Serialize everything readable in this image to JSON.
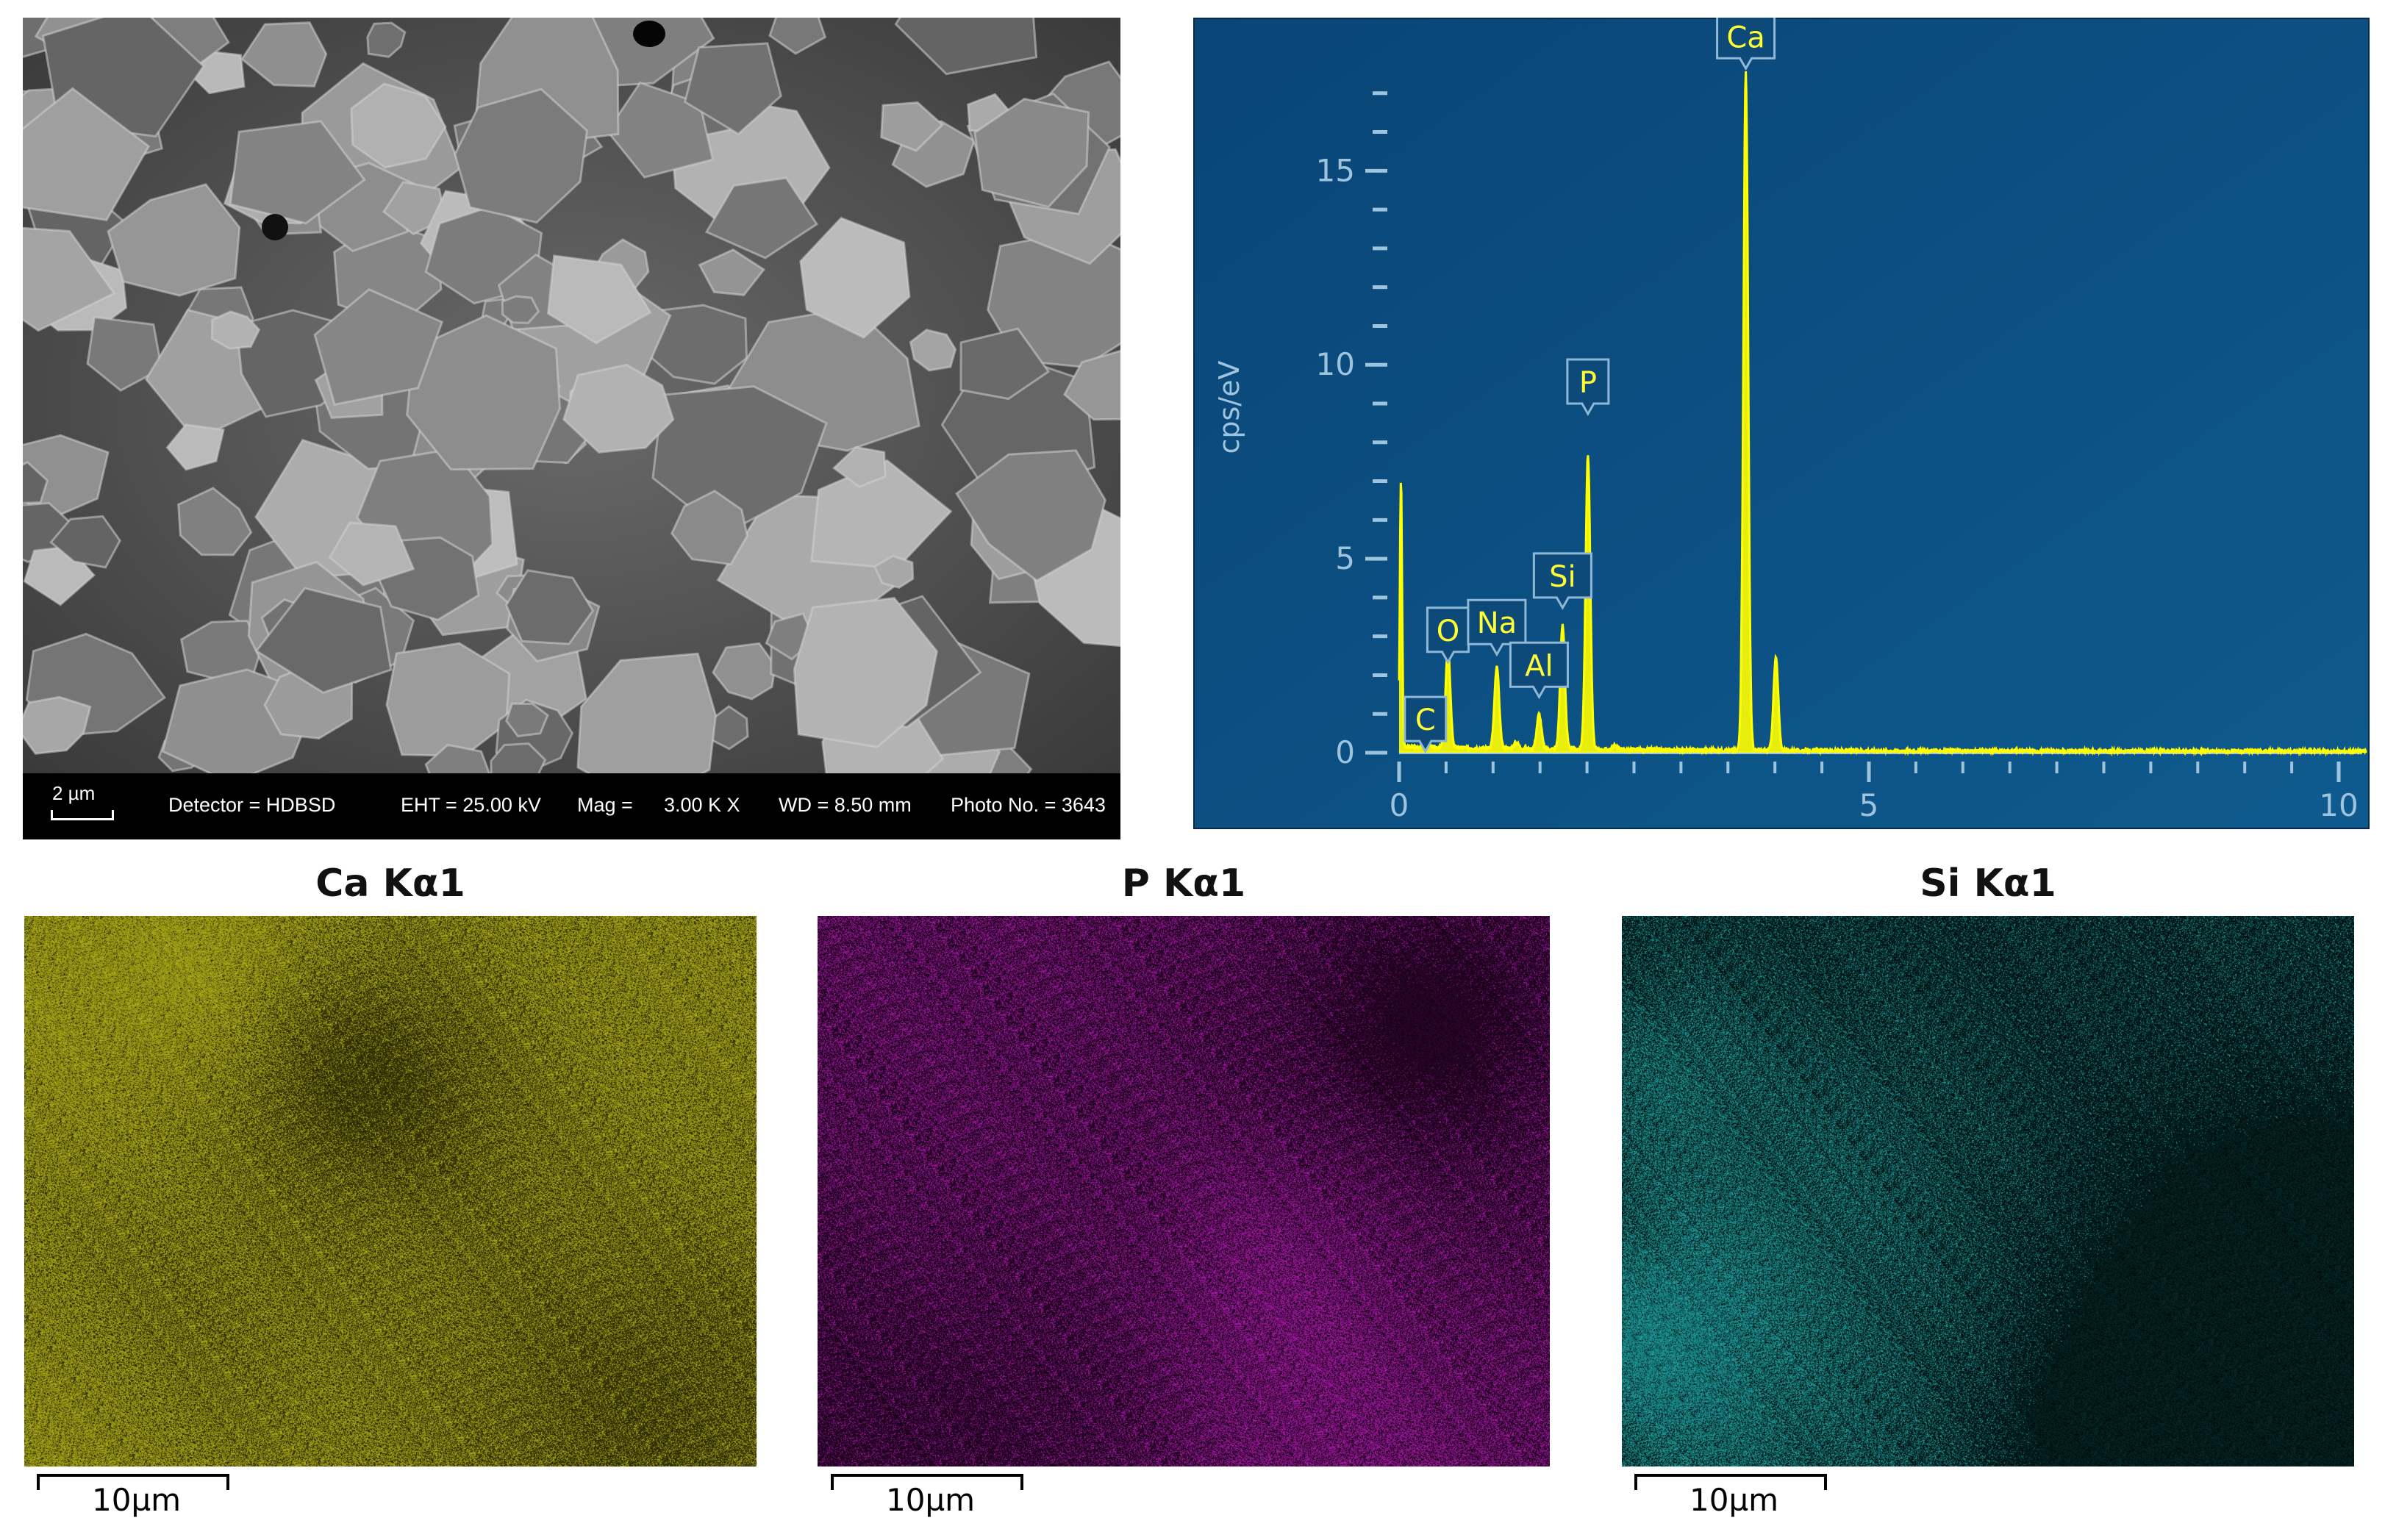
{
  "sem": {
    "scale_label": "2 µm",
    "detector": "Detector = HDBSD",
    "eht": "EHT = 25.00 kV",
    "mag_label": "Mag =",
    "mag_value": "3.00 K X",
    "wd": "WD = 8.50 mm",
    "photo": "Photo No. = 3643"
  },
  "chart_data": {
    "type": "line",
    "xlim": [
      0,
      10
    ],
    "ylim": [
      0,
      18
    ],
    "ylabel": "cps/eV",
    "xticks": [
      "0",
      "5",
      "10"
    ],
    "yticks": [
      "0",
      "5",
      "10",
      "15"
    ],
    "peaks": [
      {
        "label": "C",
        "x": 0.28,
        "y": 0.3
      },
      {
        "label": "O",
        "x": 0.52,
        "y": 2.6
      },
      {
        "label": "Na",
        "x": 1.04,
        "y": 2.1
      },
      {
        "label": "Al",
        "x": 1.49,
        "y": 0.9
      },
      {
        "label": "Si",
        "x": 1.74,
        "y": 3.2
      },
      {
        "label": "P",
        "x": 2.01,
        "y": 7.6
      },
      {
        "label": "Ca",
        "x": 3.69,
        "y": 17.5
      }
    ],
    "extra_peaks": [
      {
        "x": 0.02,
        "y": 6.9
      },
      {
        "x": 4.01,
        "y": 2.4
      },
      {
        "x": 1.25,
        "y": 0.15
      },
      {
        "x": 2.3,
        "y": 0.1
      }
    ],
    "background_color": "#0b4c7f",
    "line_color": "#ffff00"
  },
  "maps": [
    {
      "title": "Ca Kα1",
      "scale": "10µm",
      "color": "#b8b61a",
      "bg": "#1e1e02"
    },
    {
      "title": "P Kα1",
      "scale": "10µm",
      "color": "#b41cb4",
      "bg": "#0e000e"
    },
    {
      "title": "Si Kα1",
      "scale": "10µm",
      "color": "#1fa6a6",
      "bg": "#000707"
    }
  ]
}
